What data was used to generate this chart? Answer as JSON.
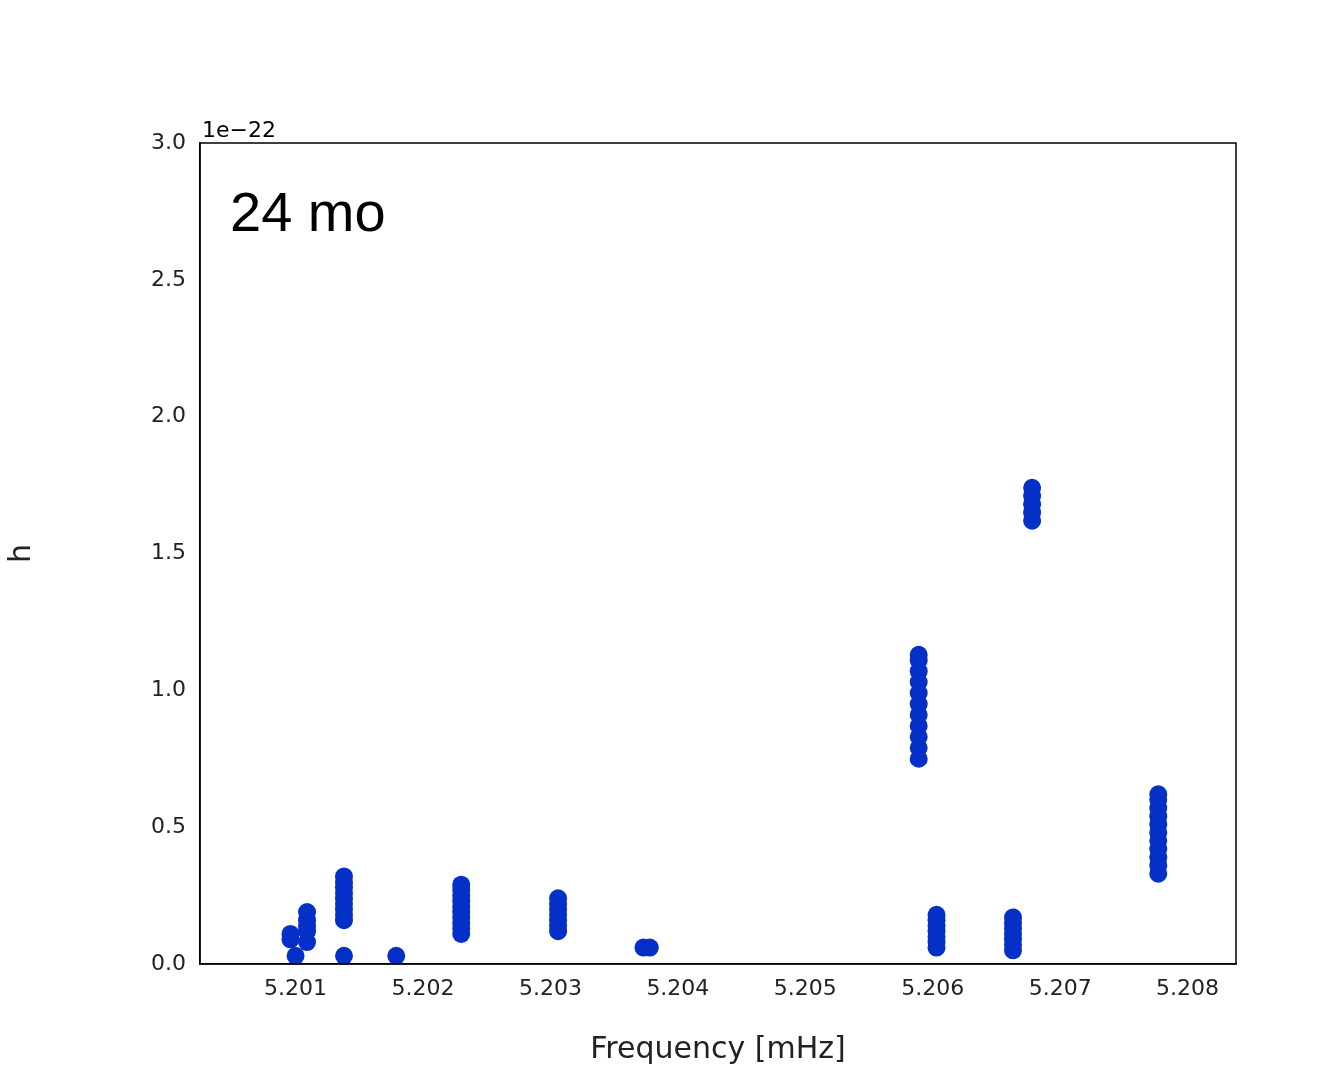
{
  "chart_data": {
    "type": "scatter",
    "xlabel": "Frequency [mHz]",
    "ylabel": "h",
    "annotations": [
      "24 mo",
      "1e−22"
    ],
    "x": [
      5.20096,
      5.20096,
      5.201,
      5.20109,
      5.20109,
      5.20109,
      5.20109,
      5.20109,
      5.20138,
      5.20138,
      5.20138,
      5.20138,
      5.20138,
      5.20138,
      5.20138,
      5.20138,
      5.20138,
      5.20138,
      5.20179,
      5.2023,
      5.2023,
      5.2023,
      5.2023,
      5.2023,
      5.2023,
      5.2023,
      5.2023,
      5.2023,
      5.2023,
      5.20306,
      5.20306,
      5.20306,
      5.20306,
      5.20306,
      5.20306,
      5.20306,
      5.20373,
      5.20378,
      5.20589,
      5.20589,
      5.20589,
      5.20589,
      5.20589,
      5.20589,
      5.20589,
      5.20589,
      5.20589,
      5.20589,
      5.20589,
      5.20603,
      5.20603,
      5.20603,
      5.20603,
      5.20603,
      5.20603,
      5.20603,
      5.20663,
      5.20663,
      5.20663,
      5.20663,
      5.20663,
      5.20663,
      5.20663,
      5.20678,
      5.20678,
      5.20678,
      5.20678,
      5.20678,
      5.20777,
      5.20777,
      5.20777,
      5.20777,
      5.20777,
      5.20777,
      5.20777,
      5.20777,
      5.20777,
      5.20777,
      5.20777
    ],
    "values": [
      0.09,
      0.11,
      0.03,
      0.08,
      0.12,
      0.14,
      0.16,
      0.19,
      0.16,
      0.18,
      0.2,
      0.22,
      0.24,
      0.26,
      0.28,
      0.3,
      0.32,
      0.03,
      0.03,
      0.11,
      0.13,
      0.15,
      0.17,
      0.19,
      0.21,
      0.23,
      0.25,
      0.27,
      0.29,
      0.12,
      0.14,
      0.16,
      0.18,
      0.2,
      0.22,
      0.24,
      0.06,
      0.06,
      0.75,
      0.79,
      0.83,
      0.87,
      0.91,
      0.95,
      0.99,
      1.03,
      1.07,
      1.11,
      1.13,
      0.06,
      0.08,
      0.1,
      0.12,
      0.14,
      0.16,
      0.18,
      0.05,
      0.07,
      0.09,
      0.11,
      0.13,
      0.15,
      0.17,
      1.62,
      1.65,
      1.68,
      1.71,
      1.74,
      0.33,
      0.36,
      0.39,
      0.42,
      0.45,
      0.48,
      0.51,
      0.54,
      0.57,
      0.6,
      0.62
    ],
    "color": "#0430c8",
    "marker": "circle",
    "xlim": [
      5.20025,
      5.20838
    ],
    "xticks": [
      5.201,
      5.202,
      5.203,
      5.204,
      5.205,
      5.206,
      5.207,
      5.208
    ],
    "ylim": [
      0,
      3
    ],
    "yticks": [
      {
        "value": 0,
        "label": "0.0"
      },
      {
        "value": 0.5,
        "label": "0.5"
      },
      {
        "value": 1,
        "label": "1.0"
      },
      {
        "value": 1.5,
        "label": "1.5"
      },
      {
        "value": 2,
        "label": "2.0"
      },
      {
        "value": 2.5,
        "label": "2.5"
      },
      {
        "value": 3,
        "label": "3.0"
      }
    ],
    "grid": false,
    "legend": false
  }
}
